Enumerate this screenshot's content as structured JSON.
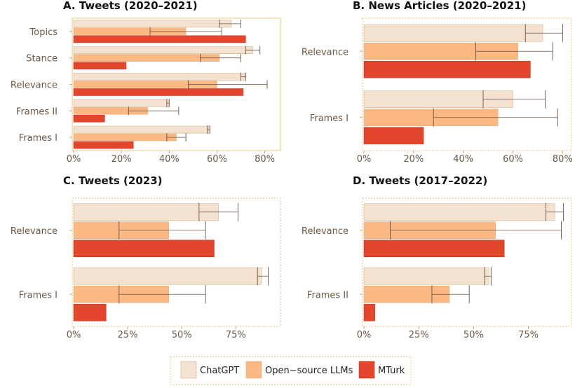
{
  "colors": {
    "ChatGPT": "#f2e2cf",
    "Open-source LLMs": "#fcb882",
    "MTurk": "#e2472e",
    "panel_border": "#e8c77a",
    "error_bar": "#6b5345",
    "tick_color": "#c9a46a"
  },
  "legend": {
    "entries": [
      "ChatGPT",
      "Open−source LLMs",
      "MTurk"
    ]
  },
  "chart_data": [
    {
      "type": "bar",
      "orientation": "horizontal",
      "title": "A. Tweets (2020–2021)",
      "categories": [
        "Topics",
        "Stance",
        "Relevance",
        "Frames II",
        "Frames I"
      ],
      "xlim": [
        0,
        0.86
      ],
      "ticks": [
        0,
        0.2,
        0.4,
        0.6,
        0.8
      ],
      "tick_labels": [
        "0%",
        "20%",
        "40%",
        "60%",
        "80%"
      ],
      "series": [
        {
          "name": "ChatGPT",
          "values": [
            0.66,
            0.75,
            0.72,
            0.4,
            0.57
          ],
          "err_low": [
            0.61,
            0.72,
            0.7,
            0.39,
            0.56
          ],
          "err_high": [
            0.7,
            0.78,
            0.72,
            0.4,
            0.57
          ]
        },
        {
          "name": "Open−source LLMs",
          "values": [
            0.47,
            0.61,
            0.6,
            0.31,
            0.43
          ],
          "err_low": [
            0.32,
            0.53,
            0.48,
            0.23,
            0.39
          ],
          "err_high": [
            0.62,
            0.7,
            0.81,
            0.44,
            0.47
          ]
        },
        {
          "name": "MTurk",
          "values": [
            0.72,
            0.22,
            0.71,
            0.13,
            0.25
          ],
          "err_low": [
            null,
            null,
            null,
            null,
            null
          ],
          "err_high": [
            null,
            null,
            null,
            null,
            null
          ]
        }
      ]
    },
    {
      "type": "bar",
      "orientation": "horizontal",
      "title": "B. News Articles (2020–2021)",
      "categories": [
        "Relevance",
        "Frames I"
      ],
      "xlim": [
        0,
        0.83
      ],
      "ticks": [
        0,
        0.2,
        0.4,
        0.6,
        0.8
      ],
      "tick_labels": [
        "0%",
        "20%",
        "40%",
        "60%",
        "80%"
      ],
      "series": [
        {
          "name": "ChatGPT",
          "values": [
            0.72,
            0.6
          ],
          "err_low": [
            0.65,
            0.48
          ],
          "err_high": [
            0.8,
            0.73
          ]
        },
        {
          "name": "Open−source LLMs",
          "values": [
            0.62,
            0.54
          ],
          "err_low": [
            0.45,
            0.28
          ],
          "err_high": [
            0.76,
            0.78
          ]
        },
        {
          "name": "MTurk",
          "values": [
            0.67,
            0.24
          ],
          "err_low": [
            null,
            null
          ],
          "err_high": [
            null,
            null
          ]
        }
      ]
    },
    {
      "type": "bar",
      "orientation": "horizontal",
      "title": "C. Tweets (2023)",
      "categories": [
        "Relevance",
        "Frames I"
      ],
      "xlim": [
        0,
        0.95
      ],
      "ticks": [
        0,
        0.25,
        0.5,
        0.75
      ],
      "tick_labels": [
        "0%",
        "25%",
        "50%",
        "75%"
      ],
      "series": [
        {
          "name": "ChatGPT",
          "values": [
            0.67,
            0.87
          ],
          "err_low": [
            0.58,
            0.85
          ],
          "err_high": [
            0.76,
            0.9
          ]
        },
        {
          "name": "Open−source LLMs",
          "values": [
            0.44,
            0.44
          ],
          "err_low": [
            0.21,
            0.21
          ],
          "err_high": [
            0.61,
            0.61
          ]
        },
        {
          "name": "MTurk",
          "values": [
            0.65,
            0.15
          ],
          "err_low": [
            null,
            null
          ],
          "err_high": [
            null,
            null
          ]
        }
      ]
    },
    {
      "type": "bar",
      "orientation": "horizontal",
      "title": "D. Tweets (2017–2022)",
      "categories": [
        "Relevance",
        "Frames II"
      ],
      "xlim": [
        0,
        0.94
      ],
      "ticks": [
        0,
        0.25,
        0.5,
        0.75
      ],
      "tick_labels": [
        "0%",
        "25%",
        "50%",
        "75%"
      ],
      "series": [
        {
          "name": "ChatGPT",
          "values": [
            0.87,
            0.57
          ],
          "err_low": [
            0.83,
            0.55
          ],
          "err_high": [
            0.91,
            0.58
          ]
        },
        {
          "name": "Open−source LLMs",
          "values": [
            0.6,
            0.39
          ],
          "err_low": [
            0.12,
            0.31
          ],
          "err_high": [
            0.9,
            0.48
          ]
        },
        {
          "name": "MTurk",
          "values": [
            0.64,
            0.05
          ],
          "err_low": [
            null,
            null
          ],
          "err_high": [
            null,
            null
          ]
        }
      ]
    }
  ]
}
